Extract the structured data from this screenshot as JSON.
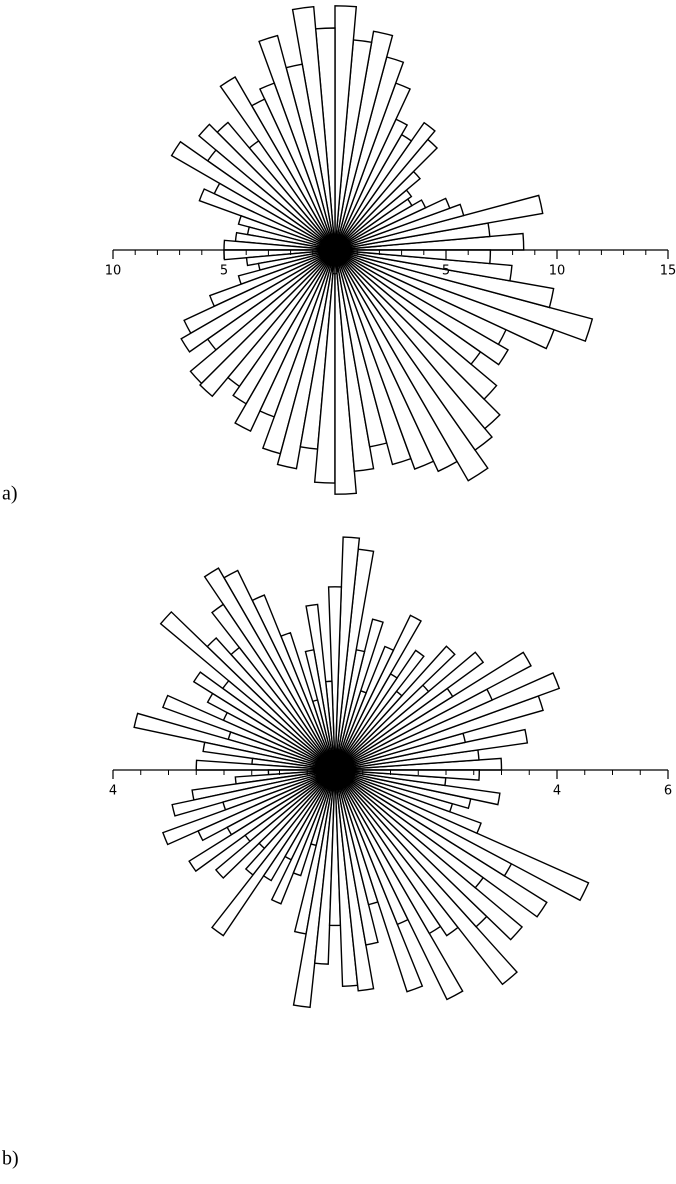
{
  "chart_data": [
    {
      "type": "rose",
      "label": "a)",
      "color": "#000000",
      "xlim": [
        -10,
        15
      ],
      "xticks": [
        {
          "value": -10,
          "label": "10"
        },
        {
          "value": -5,
          "label": "5"
        },
        0,
        5,
        10,
        15
      ],
      "minor_xticks": [
        -9,
        -8,
        -7,
        -6,
        -4,
        -3,
        -2,
        -1,
        1,
        2,
        3,
        4,
        6,
        7,
        8,
        9,
        11,
        12,
        13,
        14
      ],
      "values": [
        8.5,
        7,
        9.5,
        6,
        5.5,
        4.5,
        4,
        4.2,
        5,
        6.5,
        7,
        6,
        6.5,
        8,
        9,
        10,
        9.5,
        11,
        10,
        11,
        8.5,
        10,
        8,
        7.5,
        9,
        6,
        7.5,
        8,
        7,
        8.5,
        6,
        6.5,
        4.5,
        4,
        4.5,
        5,
        5,
        4,
        3.5,
        4.5,
        6,
        7.5,
        8,
        7,
        8.5,
        8.6,
        7.5,
        8,
        9,
        8,
        9.5,
        10,
        9,
        10.5,
        11,
        10,
        9,
        10,
        10.5,
        11,
        12,
        11,
        10.5,
        9.5,
        8,
        9,
        8.5,
        10.5,
        12,
        10,
        8,
        7
      ]
    },
    {
      "type": "rose",
      "label": "b)",
      "color": "#000000",
      "xlim": [
        -4,
        6
      ],
      "xticks": [
        {
          "value": -4,
          "label": "4"
        },
        4,
        6
      ],
      "minor_xticks": [
        -3.5,
        -3,
        -2.5,
        -2,
        -1.5,
        -1,
        -0.5,
        0,
        0.5,
        1,
        1.5,
        2,
        2.5,
        3,
        3.5,
        4.5,
        5,
        5.5
      ],
      "values": [
        3.0,
        2.6,
        3.5,
        2.4,
        3.9,
        4.3,
        3.1,
        4.0,
        2.5,
        3.3,
        2.2,
        3.0,
        1.8,
        2.6,
        2.0,
        3.1,
        2.4,
        1.5,
        2.8,
        2.2,
        4.0,
        4.2,
        3.3,
        1.6,
        3.0,
        2.2,
        1.3,
        2.6,
        3.4,
        4.0,
        4.2,
        3.6,
        2.8,
        3.2,
        4.1,
        2.5,
        3.0,
        2.6,
        2.2,
        3.3,
        2.0,
        3.7,
        2.4,
        1.5,
        2.5,
        1.2,
        1.8,
        2.6,
        3.0,
        2.1,
        3.3,
        2.7,
        2.2,
        3.1,
        2.0,
        2.8,
        1.9,
        2.4,
        3.6,
        2.3,
        1.8,
        2.6,
        2.0,
        1.4,
        3.0,
        4.3,
        3.5,
        2.8,
        3.9,
        4.0,
        3.2,
        2.5,
        4.2,
        3.0,
        4.6,
        3.4,
        3.6,
        4.9,
        3.8,
        4.4,
        3.3,
        4.5,
        3.6,
        5.0,
        2.8,
        2.2,
        2.5,
        3.0,
        2.0,
        2.6
      ]
    }
  ]
}
